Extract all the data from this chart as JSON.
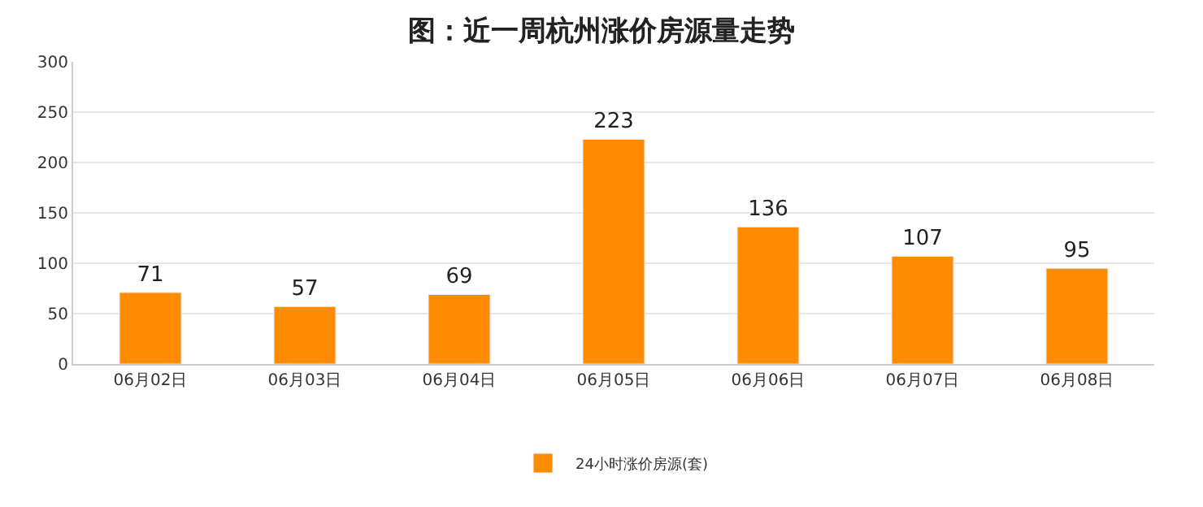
{
  "chart_data": {
    "type": "bar",
    "title": "图：近一周杭州涨价房源量走势",
    "categories": [
      "06月02日",
      "06月03日",
      "06月04日",
      "06月05日",
      "06月06日",
      "06月07日",
      "06月08日"
    ],
    "series": [
      {
        "name": "24小时涨价房源(套)",
        "color": "#ff8c00",
        "values": [
          71,
          57,
          69,
          223,
          136,
          107,
          95
        ]
      }
    ],
    "ylim": [
      0,
      300
    ],
    "yticks": [
      0,
      50,
      100,
      150,
      200,
      250,
      300
    ],
    "grid": "y",
    "legend": "bottom",
    "data_labels": true
  }
}
